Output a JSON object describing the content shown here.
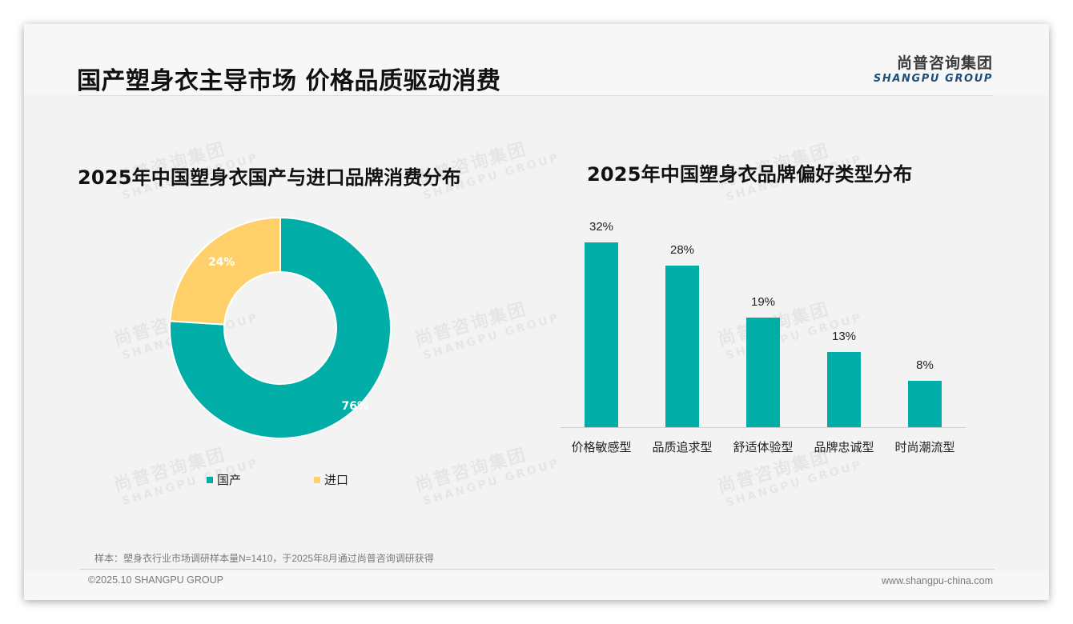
{
  "header": {
    "title": "国产塑身衣主导市场 价格品质驱动消费",
    "logo_cn": "尚普咨询集团",
    "logo_en": "SHANGPU GROUP"
  },
  "watermark": {
    "cn": "尚普咨询集团",
    "en": "SHANGPU GROUP"
  },
  "colors": {
    "teal": "#00ADA7",
    "yellow": "#FFD06A",
    "title_text": "#111111",
    "logo_blue": "#1F4E79"
  },
  "left_chart": {
    "title": "2025年中国塑身衣国产与进口品牌消费分布",
    "segments": [
      {
        "label": "国产",
        "value": 76,
        "display": "76%",
        "color": "#00ADA7"
      },
      {
        "label": "进口",
        "value": 24,
        "display": "24%",
        "color": "#FFD06A"
      }
    ]
  },
  "right_chart": {
    "title": "2025年中国塑身衣品牌偏好类型分布",
    "bars": [
      {
        "label": "价格敏感型",
        "value": 32,
        "display": "32%"
      },
      {
        "label": "品质追求型",
        "value": 28,
        "display": "28%"
      },
      {
        "label": "舒适体验型",
        "value": 19,
        "display": "19%"
      },
      {
        "label": "品牌忠诚型",
        "value": 13,
        "display": "13%"
      },
      {
        "label": "时尚潮流型",
        "value": 8,
        "display": "8%"
      }
    ]
  },
  "footer": {
    "note": "样本：塑身衣行业市场调研样本量N=1410，于2025年8月通过尚普咨询调研获得",
    "copyright": "©2025.10 SHANGPU GROUP",
    "website": "www.shangpu-china.com"
  },
  "chart_data": [
    {
      "type": "pie",
      "title": "2025年中国塑身衣国产与进口品牌消费分布",
      "categories": [
        "国产",
        "进口"
      ],
      "values": [
        76,
        24
      ],
      "unit": "%",
      "donut": true,
      "legend_position": "bottom"
    },
    {
      "type": "bar",
      "title": "2025年中国塑身衣品牌偏好类型分布",
      "categories": [
        "价格敏感型",
        "品质追求型",
        "舒适体验型",
        "品牌忠诚型",
        "时尚潮流型"
      ],
      "values": [
        32,
        28,
        19,
        13,
        8
      ],
      "unit": "%",
      "xlabel": "",
      "ylabel": "",
      "grid": false,
      "data_labels": true
    }
  ]
}
